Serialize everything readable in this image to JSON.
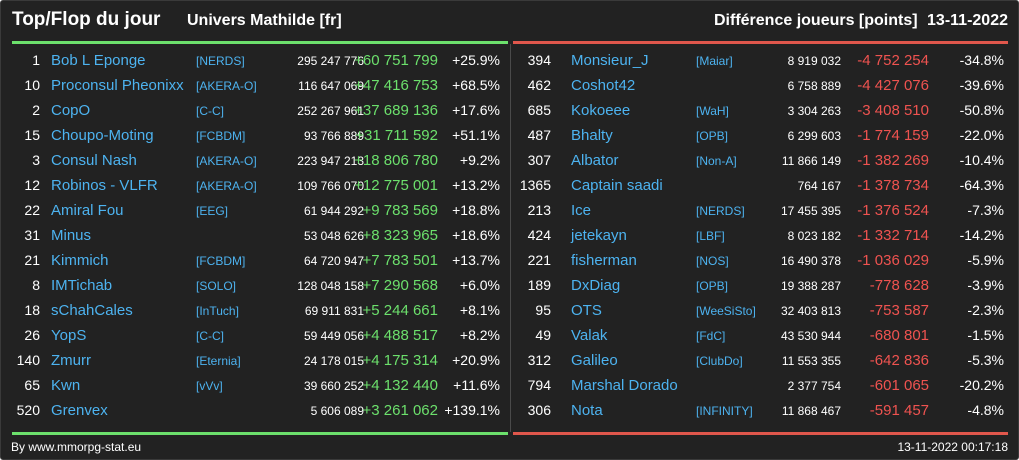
{
  "header": {
    "title": "Top/Flop du jour",
    "universe": "Univers Mathilde [fr]",
    "metric": "Différence joueurs [points]",
    "date": "13-11-2022"
  },
  "colors": {
    "background": "#222222",
    "gain": "#6ce06c",
    "loss": "#ef5350",
    "link": "#4db3f0"
  },
  "top": [
    {
      "rank": "1",
      "name": "Bob L Eponge",
      "alliance": "[NERDS]",
      "points": "295 247 776",
      "diff": "+60 751 799",
      "pct": "+25.9%"
    },
    {
      "rank": "10",
      "name": "Proconsul Pheonixx",
      "alliance": "[AKERA-O]",
      "points": "116 647 069",
      "diff": "+47 416 753",
      "pct": "+68.5%"
    },
    {
      "rank": "2",
      "name": "CopO",
      "alliance": "[C-C]",
      "points": "252 267 961",
      "diff": "+37 689 136",
      "pct": "+17.6%"
    },
    {
      "rank": "15",
      "name": "Choupo-Moting",
      "alliance": "[FCBDM]",
      "points": "93 766 889",
      "diff": "+31 711 592",
      "pct": "+51.1%"
    },
    {
      "rank": "3",
      "name": "Consul Nash",
      "alliance": "[AKERA-O]",
      "points": "223 947 213",
      "diff": "+18 806 780",
      "pct": "+9.2%"
    },
    {
      "rank": "12",
      "name": "Robinos - VLFR",
      "alliance": "[AKERA-O]",
      "points": "109 766 070",
      "diff": "+12 775 001",
      "pct": "+13.2%"
    },
    {
      "rank": "22",
      "name": "Amiral Fou",
      "alliance": "[EEG]",
      "points": "61 944 292",
      "diff": "+9 783 569",
      "pct": "+18.8%"
    },
    {
      "rank": "31",
      "name": "Minus",
      "alliance": "",
      "points": "53 048 626",
      "diff": "+8 323 965",
      "pct": "+18.6%"
    },
    {
      "rank": "21",
      "name": "Kimmich",
      "alliance": "[FCBDM]",
      "points": "64 720 947",
      "diff": "+7 783 501",
      "pct": "+13.7%"
    },
    {
      "rank": "8",
      "name": "IMTichab",
      "alliance": "[SOLO]",
      "points": "128 048 158",
      "diff": "+7 290 568",
      "pct": "+6.0%"
    },
    {
      "rank": "18",
      "name": "sChahCales",
      "alliance": "[InTuch]",
      "points": "69 911 831",
      "diff": "+5 244 661",
      "pct": "+8.1%"
    },
    {
      "rank": "26",
      "name": "YopS",
      "alliance": "[C-C]",
      "points": "59 449 056",
      "diff": "+4 488 517",
      "pct": "+8.2%"
    },
    {
      "rank": "140",
      "name": "Zmurr",
      "alliance": "[Eternia]",
      "points": "24 178 015",
      "diff": "+4 175 314",
      "pct": "+20.9%"
    },
    {
      "rank": "65",
      "name": "Kwn",
      "alliance": "[vVv]",
      "points": "39 660 252",
      "diff": "+4 132 440",
      "pct": "+11.6%"
    },
    {
      "rank": "520",
      "name": "Grenvex",
      "alliance": "",
      "points": "5 606 089",
      "diff": "+3 261 062",
      "pct": "+139.1%"
    }
  ],
  "flop": [
    {
      "rank": "394",
      "name": "Monsieur_J",
      "alliance": "[Maiar]",
      "points": "8 919 032",
      "diff": "-4 752 254",
      "pct": "-34.8%"
    },
    {
      "rank": "462",
      "name": "Coshot42",
      "alliance": "",
      "points": "6 758 889",
      "diff": "-4 427 076",
      "pct": "-39.6%"
    },
    {
      "rank": "685",
      "name": "Kokoeee",
      "alliance": "[WaH]",
      "points": "3 304 263",
      "diff": "-3 408 510",
      "pct": "-50.8%"
    },
    {
      "rank": "487",
      "name": "Bhalty",
      "alliance": "[OPB]",
      "points": "6 299 603",
      "diff": "-1 774 159",
      "pct": "-22.0%"
    },
    {
      "rank": "307",
      "name": "Albator",
      "alliance": "[Non-A]",
      "points": "11 866 149",
      "diff": "-1 382 269",
      "pct": "-10.4%"
    },
    {
      "rank": "1365",
      "name": "Captain saadi",
      "alliance": "",
      "points": "764 167",
      "diff": "-1 378 734",
      "pct": "-64.3%"
    },
    {
      "rank": "213",
      "name": "Ice",
      "alliance": "[NERDS]",
      "points": "17 455 395",
      "diff": "-1 376 524",
      "pct": "-7.3%"
    },
    {
      "rank": "424",
      "name": "jetekayn",
      "alliance": "[LBF]",
      "points": "8 023 182",
      "diff": "-1 332 714",
      "pct": "-14.2%"
    },
    {
      "rank": "221",
      "name": "fisherman",
      "alliance": "[NOS]",
      "points": "16 490 378",
      "diff": "-1 036 029",
      "pct": "-5.9%"
    },
    {
      "rank": "189",
      "name": "DxDiag",
      "alliance": "[OPB]",
      "points": "19 388 287",
      "diff": "-778 628",
      "pct": "-3.9%"
    },
    {
      "rank": "95",
      "name": "OTS",
      "alliance": "[WeeSiSto]",
      "points": "32 403 813",
      "diff": "-753 587",
      "pct": "-2.3%"
    },
    {
      "rank": "49",
      "name": "Valak",
      "alliance": "[FdC]",
      "points": "43 530 944",
      "diff": "-680 801",
      "pct": "-1.5%"
    },
    {
      "rank": "312",
      "name": "Galileo",
      "alliance": "[ClubDo]",
      "points": "11 553 355",
      "diff": "-642 836",
      "pct": "-5.3%"
    },
    {
      "rank": "794",
      "name": "Marshal Dorado",
      "alliance": "",
      "points": "2 377 754",
      "diff": "-601 065",
      "pct": "-20.2%"
    },
    {
      "rank": "306",
      "name": "Nota",
      "alliance": "[INFINITY]",
      "points": "11 868 467",
      "diff": "-591 457",
      "pct": "-4.8%"
    }
  ],
  "footer": {
    "credit": "By www.mmorpg-stat.eu",
    "timestamp": "13-11-2022 00:17:18"
  }
}
